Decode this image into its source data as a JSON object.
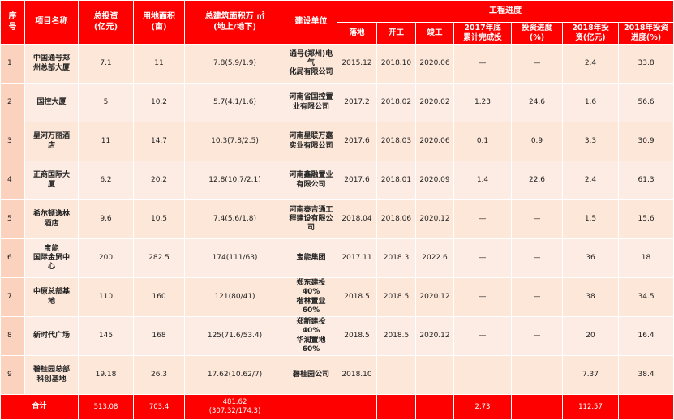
{
  "headers": {
    "index": "序\n号",
    "name": "项目名称",
    "invest": "总投资\n(亿元)",
    "land": "用地面积\n(亩)",
    "area": "总建筑面积万 ㎡\n(地上/地下)",
    "builder": "建设单位",
    "progress_group": "工程进度",
    "progress_cols": [
      "落地",
      "开工",
      "竣工",
      "2017年底\n累计完成投",
      "投资进度\n(%)",
      "2018年投\n资(亿元)",
      "2018年投资\n进度(%)"
    ]
  },
  "rows": [
    {
      "index": "1",
      "name": "中国通号郑\n州总部大厦",
      "invest": "7.1",
      "land": "11",
      "area": "7.8(5.9/1.9)",
      "builder": "通号(郑州)电气\n化局有限公司",
      "landing": "2015.12",
      "start": "2018.10",
      "finish": "2020.06",
      "cum2017": "—",
      "progress": "—",
      "inv2018": "2.4",
      "prog2018": "33.8"
    },
    {
      "index": "2",
      "name": "国控大厦",
      "invest": "5",
      "land": "10.2",
      "area": "5.7(4.1/1.6)",
      "builder": "河南省国控置\n业有限公司",
      "landing": "2017.2",
      "start": "2018.02",
      "finish": "2020.02",
      "cum2017": "1.23",
      "progress": "24.6",
      "inv2018": "1.6",
      "prog2018": "56.6"
    },
    {
      "index": "3",
      "name": "星河万丽酒\n店",
      "invest": "11",
      "land": "14.7",
      "area": "10.3(7.8/2.5)",
      "builder": "河南星联万嘉\n实业有限公司",
      "landing": "2017.6",
      "start": "2018.03",
      "finish": "2020.06",
      "cum2017": "0.1",
      "progress": "0.9",
      "inv2018": "3.3",
      "prog2018": "30.9"
    },
    {
      "index": "4",
      "name": "正商国际大\n厦",
      "invest": "6.2",
      "land": "20.2",
      "area": "12.8(10.7/2.1)",
      "builder": "河南鑫融置业\n有限公司",
      "landing": "2017.6",
      "start": "2018.01",
      "finish": "2020.09",
      "cum2017": "1.4",
      "progress": "22.6",
      "inv2018": "2.4",
      "prog2018": "61.3"
    },
    {
      "index": "5",
      "name": "希尔顿逸林\n酒店",
      "invest": "9.6",
      "land": "10.5",
      "area": "7.4(5.6/1.8)",
      "builder": "河南泰吉通工\n程建设有限公司",
      "landing": "2018.04",
      "start": "2018.06",
      "finish": "2020.12",
      "cum2017": "—",
      "progress": "—",
      "inv2018": "1.5",
      "prog2018": "15.6"
    },
    {
      "index": "6",
      "name": "宝能\n国际金贸中\n心",
      "invest": "200",
      "land": "282.5",
      "area": "174(111/63)",
      "builder": "宝能集团",
      "landing": "2017.11",
      "start": "2018.3",
      "finish": "2022.6",
      "cum2017": "—",
      "progress": "—",
      "inv2018": "36",
      "prog2018": "18"
    },
    {
      "index": "7",
      "name": "中原总部基\n地",
      "invest": "110",
      "land": "160",
      "area": "121(80/41)",
      "builder": "郑东建投 40%\n楷林置业 60%",
      "landing": "2018.5",
      "start": "2018.5",
      "finish": "2020.12",
      "cum2017": "—",
      "progress": "—",
      "inv2018": "38",
      "prog2018": "34.5"
    },
    {
      "index": "8",
      "name": "新时代广场",
      "invest": "145",
      "land": "168",
      "area": "125(71.6/53.4)",
      "builder": "郑新建投 40%\n华润置地 60%",
      "landing": "2018.5",
      "start": "2018.5",
      "finish": "2020.12",
      "cum2017": "—",
      "progress": "—",
      "inv2018": "20",
      "prog2018": "16.4"
    },
    {
      "index": "9",
      "name": "碧桂园总部\n科创基地",
      "invest": "19.18",
      "land": "26.3",
      "area": "17.62(10.62/7)",
      "builder": "碧桂园公司",
      "landing": "2018.10",
      "start": "",
      "finish": "",
      "cum2017": "",
      "progress": "",
      "inv2018": "7.37",
      "prog2018": "38.4"
    }
  ],
  "total": {
    "label": "合计",
    "invest": "513.08",
    "land": "703.4",
    "area_top": "481.62",
    "area_bottom": "(307.32/174.3)",
    "cum2017": "2.73",
    "inv2018": "112.57"
  },
  "colors": {
    "header": "#ff0000",
    "row_bg": "#fde7d9",
    "index_bg": "#fbd2bd"
  }
}
